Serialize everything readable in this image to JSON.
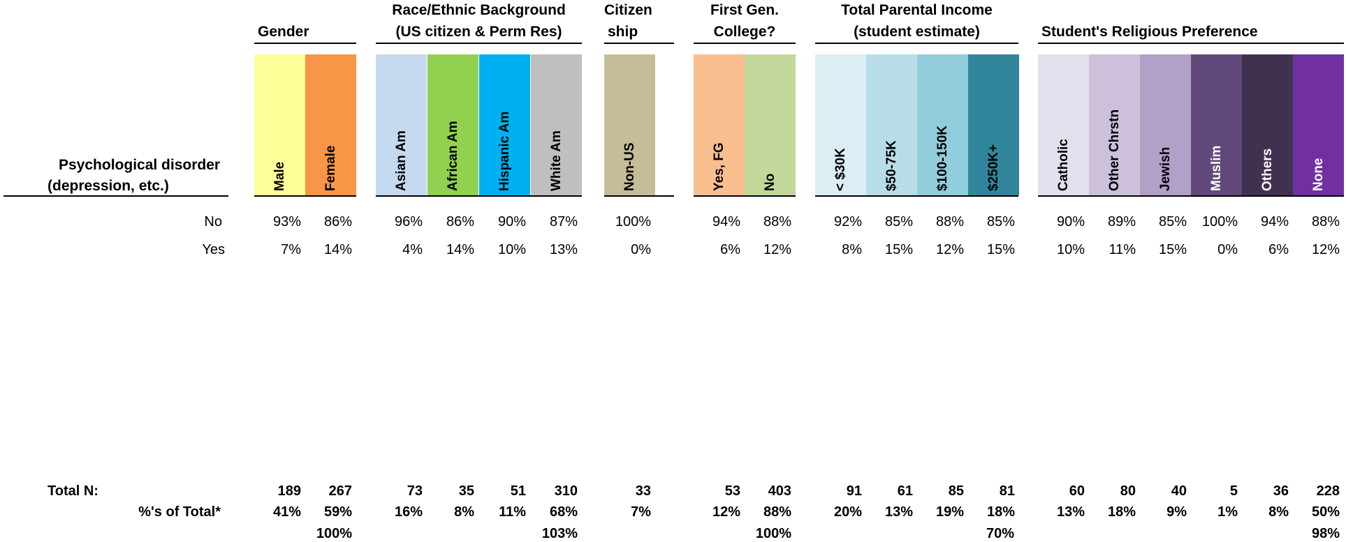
{
  "title": {
    "line1": "Psychological disorder",
    "line2": "(depression, etc.)"
  },
  "groups": [
    {
      "line1": "",
      "line2": "Gender",
      "align": "left"
    },
    {
      "line1": "Race/Ethnic Background",
      "line2": "(US citizen & Perm Res)",
      "align": "center"
    },
    {
      "line1": "Citizen",
      "line2": "ship",
      "align": "left"
    },
    {
      "line1": "First Gen.",
      "line2": "College?",
      "align": "center"
    },
    {
      "line1": "Total Parental Income",
      "line2": "(student estimate)",
      "align": "center"
    },
    {
      "line1": "",
      "line2": "Student's Religious Preference",
      "align": "left"
    }
  ],
  "columns": [
    {
      "label": "Male",
      "group": 0,
      "color": "#FFFF99",
      "text_color": "#000000",
      "no": "93%",
      "yes": "7%",
      "n": "189",
      "pct": "41%"
    },
    {
      "label": "Female",
      "group": 0,
      "color": "#F79646",
      "text_color": "#000000",
      "no": "86%",
      "yes": "14%",
      "n": "267",
      "pct": "59%"
    },
    {
      "label": "Asian Am",
      "group": 1,
      "color": "#C5D9F1",
      "text_color": "#000000",
      "no": "96%",
      "yes": "4%",
      "n": "73",
      "pct": "16%"
    },
    {
      "label": "African Am",
      "group": 1,
      "color": "#92D050",
      "text_color": "#000000",
      "no": "86%",
      "yes": "14%",
      "n": "35",
      "pct": "8%"
    },
    {
      "label": "Hispanic Am",
      "group": 1,
      "color": "#00B0F0",
      "text_color": "#000000",
      "no": "90%",
      "yes": "10%",
      "n": "51",
      "pct": "11%"
    },
    {
      "label": "White Am",
      "group": 1,
      "color": "#BFBFBF",
      "text_color": "#000000",
      "no": "87%",
      "yes": "13%",
      "n": "310",
      "pct": "68%"
    },
    {
      "label": "Non-US",
      "group": 2,
      "color": "#C4BD97",
      "text_color": "#000000",
      "no": "100%",
      "yes": "0%",
      "n": "33",
      "pct": "7%"
    },
    {
      "label": "Yes, FG",
      "group": 3,
      "color": "#FABF8F",
      "text_color": "#000000",
      "no": "94%",
      "yes": "6%",
      "n": "53",
      "pct": "12%"
    },
    {
      "label": "No",
      "group": 3,
      "color": "#C4D79B",
      "text_color": "#000000",
      "no": "88%",
      "yes": "12%",
      "n": "403",
      "pct": "88%"
    },
    {
      "label": "< $30K",
      "group": 4,
      "color": "#DAEEF3",
      "text_color": "#000000",
      "no": "92%",
      "yes": "8%",
      "n": "91",
      "pct": "20%"
    },
    {
      "label": "$50-75K",
      "group": 4,
      "color": "#B7DEE8",
      "text_color": "#000000",
      "no": "85%",
      "yes": "15%",
      "n": "61",
      "pct": "13%"
    },
    {
      "label": "$100-150K",
      "group": 4,
      "color": "#92CDDC",
      "text_color": "#000000",
      "no": "88%",
      "yes": "12%",
      "n": "85",
      "pct": "19%"
    },
    {
      "label": "$250K+",
      "group": 4,
      "color": "#31869B",
      "text_color": "#000000",
      "no": "85%",
      "yes": "15%",
      "n": "81",
      "pct": "18%"
    },
    {
      "label": "Catholic",
      "group": 5,
      "color": "#E4DFEC",
      "text_color": "#000000",
      "no": "90%",
      "yes": "10%",
      "n": "60",
      "pct": "13%"
    },
    {
      "label": "Other Chrstn",
      "group": 5,
      "color": "#CCC0DA",
      "text_color": "#000000",
      "no": "89%",
      "yes": "11%",
      "n": "80",
      "pct": "18%"
    },
    {
      "label": "Jewish",
      "group": 5,
      "color": "#B1A0C7",
      "text_color": "#000000",
      "no": "85%",
      "yes": "15%",
      "n": "40",
      "pct": "9%"
    },
    {
      "label": "Muslim",
      "group": 5,
      "color": "#60497A",
      "text_color": "#FFFFFF",
      "no": "100%",
      "yes": "0%",
      "n": "5",
      "pct": "1%"
    },
    {
      "label": "Others",
      "group": 5,
      "color": "#403151",
      "text_color": "#FFFFFF",
      "no": "94%",
      "yes": "6%",
      "n": "36",
      "pct": "8%"
    },
    {
      "label": "None",
      "group": 5,
      "color": "#7030A0",
      "text_color": "#FFFFFF",
      "no": "88%",
      "yes": "12%",
      "n": "228",
      "pct": "50%"
    }
  ],
  "rows": {
    "no_label": "No",
    "yes_label": "Yes",
    "total_n_label": "Total N:",
    "pct_total_label": "%'s of Total*"
  },
  "group_totals": [
    "100%",
    "103%",
    "",
    "100%",
    "70%",
    "98%"
  ]
}
